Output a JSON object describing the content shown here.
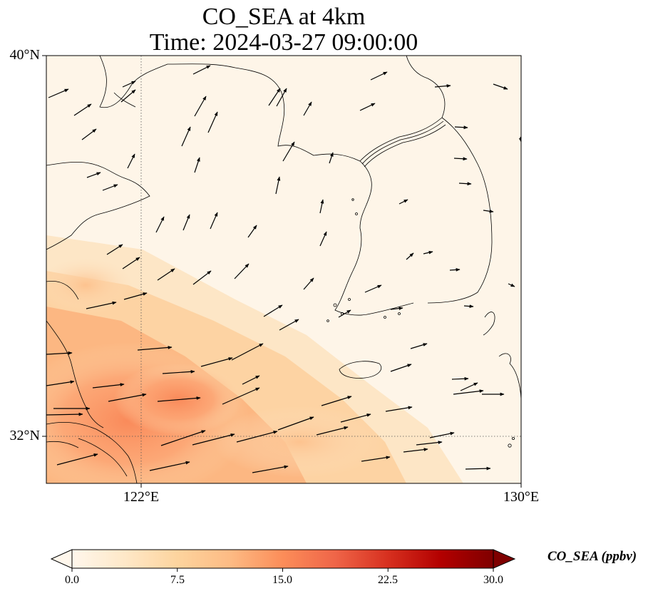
{
  "title": {
    "line1": "CO_SEA at 4km",
    "line2": "Time: 2024-03-27 09:00:00"
  },
  "map": {
    "lat_range": [
      30.8,
      40.0
    ],
    "lon_range": [
      120.0,
      130.0
    ],
    "y_ticks": [
      {
        "label": "40°N",
        "lat": 40.0
      },
      {
        "label": "32°N",
        "lat": 32.0
      }
    ],
    "x_ticks": [
      {
        "label": "122°E",
        "lon": 122.0
      },
      {
        "label": "130°E",
        "lon": 130.0
      }
    ],
    "gridlines": "dotted at 32°N and 122°E",
    "field": "CO_SEA concentration, highest (~13-16 ppbv) near the Yangtze delta in the lower-left, decreasing toward the northeast",
    "colors": {
      "background": "#fef5e8",
      "coast": "#000000",
      "arrows": "#000000"
    }
  },
  "colorbar": {
    "min": 0.0,
    "max": 30.0,
    "ticks": [
      "0.0",
      "7.5",
      "15.0",
      "22.5",
      "30.0"
    ],
    "label": "CO_SEA (ppbv)",
    "colormap": [
      "#fff7ec",
      "#fee8c8",
      "#fdd49e",
      "#fdbb84",
      "#fc8d59",
      "#ef6548",
      "#d7301f",
      "#b30000",
      "#7f0000"
    ],
    "extend": "both"
  }
}
